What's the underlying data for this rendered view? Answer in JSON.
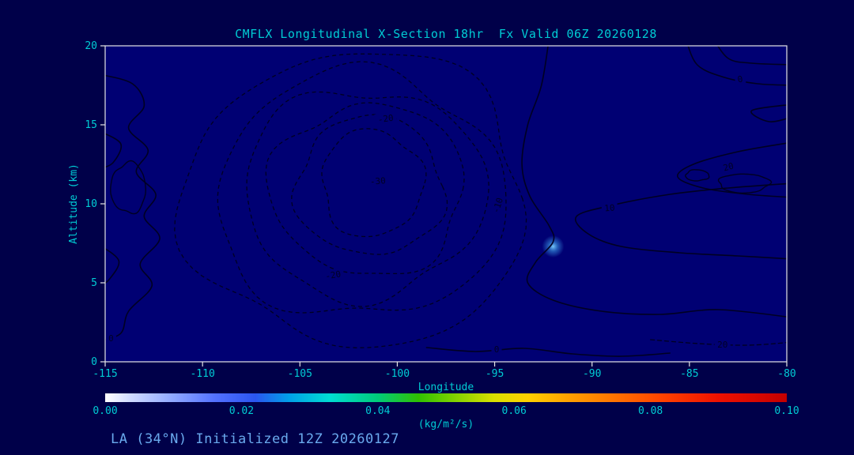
{
  "window": {
    "background": "#000049"
  },
  "chart_data": {
    "type": "contour",
    "title": "CMFLX Longitudinal X-Section 18hr  Fx Valid 06Z 20260128",
    "xlabel": "Longitude",
    "ylabel": "Altitude (km)",
    "xlim": [
      -115,
      -80
    ],
    "ylim": [
      0,
      20
    ],
    "x_ticks": [
      -115,
      -110,
      -105,
      -100,
      -95,
      -90,
      -85,
      -80
    ],
    "y_ticks": [
      0,
      5,
      10,
      15,
      20
    ],
    "grid": false,
    "plot_background": "#000073",
    "frame_color": "#e6e6e6",
    "text_color": "#00ccd4",
    "contour_color": "#000022",
    "contour_label_color": "#000026",
    "contour_levels_labeled": [
      -30,
      -20,
      -10,
      0,
      10,
      20
    ],
    "rings": [
      {
        "level": -30,
        "cx": -101.3,
        "cy": 11.3,
        "rx": 2.6,
        "ry": 3.4
      },
      {
        "level": -25,
        "cx": -101.4,
        "cy": 11.1,
        "rx": 3.8,
        "ry": 4.4
      },
      {
        "level": -20,
        "cx": -101.5,
        "cy": 10.9,
        "rx": 5.0,
        "ry": 5.4
      },
      {
        "level": -15,
        "cx": -101.7,
        "cy": 10.7,
        "rx": 6.2,
        "ry": 6.6
      },
      {
        "level": -10,
        "cx": -101.9,
        "cy": 10.5,
        "rx": 7.4,
        "ry": 7.8
      },
      {
        "level": -5,
        "cx": -102.1,
        "cy": 10.3,
        "rx": 8.8,
        "ry": 9.3
      }
    ],
    "paths": [
      {
        "level": 0,
        "dashed": false,
        "points": [
          [
            -92.2,
            20.5
          ],
          [
            -92.6,
            17.5
          ],
          [
            -93.3,
            15
          ],
          [
            -93.6,
            12.5
          ],
          [
            -93.2,
            10.5
          ],
          [
            -92.2,
            8.6
          ],
          [
            -92.0,
            7.6
          ],
          [
            -92.9,
            6.3
          ],
          [
            -93.3,
            5.0
          ],
          [
            -92.0,
            3.9
          ],
          [
            -89.5,
            3.2
          ],
          [
            -86.5,
            3.0
          ],
          [
            -83.5,
            3.3
          ],
          [
            -79.7,
            2.8
          ]
        ]
      },
      {
        "level": 10,
        "dashed": false,
        "points": [
          [
            -79.7,
            11.3
          ],
          [
            -83,
            11.0
          ],
          [
            -86,
            10.6
          ],
          [
            -89,
            9.9
          ],
          [
            -90.8,
            9.2
          ],
          [
            -90.2,
            8.1
          ],
          [
            -88.5,
            7.3
          ],
          [
            -85.5,
            6.9
          ],
          [
            -82.5,
            6.7
          ],
          [
            -79.7,
            6.5
          ]
        ]
      },
      {
        "level": 20,
        "dashed": false,
        "points": [
          [
            -79.7,
            13.9
          ],
          [
            -82.5,
            13.3
          ],
          [
            -84.8,
            12.5
          ],
          [
            -85.6,
            11.7
          ],
          [
            -84.3,
            11.0
          ],
          [
            -82,
            10.6
          ],
          [
            -79.7,
            10.4
          ]
        ]
      },
      {
        "level": 0,
        "dashed": false,
        "points": [
          [
            -85.2,
            20.5
          ],
          [
            -84.6,
            18.8
          ],
          [
            -83.2,
            18.0
          ],
          [
            -81.5,
            17.6
          ],
          [
            -79.7,
            17.5
          ]
        ]
      },
      {
        "level": 0,
        "dashed": false,
        "points": [
          [
            -83.8,
            20.5
          ],
          [
            -83.0,
            19.2
          ],
          [
            -81.8,
            18.9
          ],
          [
            -79.7,
            18.8
          ]
        ]
      },
      {
        "level": 0,
        "dashed": false,
        "points": [
          [
            -79.7,
            16.3
          ],
          [
            -81.8,
            15.9
          ],
          [
            -80.9,
            15.2
          ],
          [
            -79.7,
            15.5
          ]
        ]
      },
      {
        "level": 0,
        "dashed": false,
        "points": [
          [
            -115.3,
            18.2
          ],
          [
            -113.6,
            17.6
          ],
          [
            -113.0,
            16.2
          ],
          [
            -113.8,
            14.8
          ],
          [
            -112.8,
            13.4
          ],
          [
            -113.4,
            12.0
          ],
          [
            -112.4,
            10.6
          ],
          [
            -113.0,
            9.2
          ],
          [
            -112.2,
            7.8
          ],
          [
            -113.2,
            6.2
          ],
          [
            -112.6,
            4.8
          ],
          [
            -113.8,
            3.2
          ],
          [
            -114.2,
            1.8
          ],
          [
            -115.3,
            1.3
          ]
        ]
      },
      {
        "level": 0,
        "dashed": false,
        "points": [
          [
            -115.3,
            14.6
          ],
          [
            -114.2,
            13.8
          ],
          [
            -114.6,
            12.6
          ],
          [
            -115.3,
            12.2
          ]
        ]
      },
      {
        "level": 0,
        "dashed": false,
        "points": [
          [
            -115.3,
            7.4
          ],
          [
            -114.3,
            6.4
          ],
          [
            -114.8,
            5.2
          ],
          [
            -115.3,
            4.8
          ]
        ]
      },
      {
        "level": 0,
        "dashed": false,
        "points": [
          [
            -98.5,
            0.9
          ],
          [
            -96,
            0.65
          ],
          [
            -93.5,
            0.85
          ],
          [
            -91,
            0.5
          ],
          [
            -88.5,
            0.35
          ],
          [
            -86,
            0.55
          ]
        ]
      },
      {
        "level": 20,
        "dashed": true,
        "points": [
          [
            -87,
            1.4
          ],
          [
            -84.5,
            1.15
          ],
          [
            -82,
            1.05
          ],
          [
            -79.7,
            1.25
          ]
        ]
      }
    ],
    "ellipses": [
      {
        "cx": -82.2,
        "cy": 11.3,
        "rx": 1.3,
        "ry": 0.6,
        "dashed": false
      },
      {
        "cx": -84.6,
        "cy": 11.8,
        "rx": 0.6,
        "ry": 0.35,
        "dashed": false
      },
      {
        "cx": -113.8,
        "cy": 11.0,
        "rx": 0.9,
        "ry": 1.6,
        "dashed": false
      }
    ],
    "labels": [
      {
        "text": "-20",
        "lon": -100.6,
        "alt": 15.4,
        "rot": -8
      },
      {
        "text": "-30",
        "lon": -101.0,
        "alt": 11.45,
        "rot": -5
      },
      {
        "text": "-20",
        "lon": -103.3,
        "alt": 5.5,
        "rot": -10
      },
      {
        "text": "-10",
        "lon": -94.85,
        "alt": 9.9,
        "rot": -72
      },
      {
        "text": "10",
        "lon": -89.1,
        "alt": 9.75,
        "rot": -5
      },
      {
        "text": "20",
        "lon": -83.0,
        "alt": 12.35,
        "rot": -15
      },
      {
        "text": "0",
        "lon": -82.4,
        "alt": 17.9,
        "rot": -10
      },
      {
        "text": "0",
        "lon": -114.7,
        "alt": 1.5,
        "rot": 0
      },
      {
        "text": "0",
        "lon": -94.9,
        "alt": 0.8,
        "rot": 0
      },
      {
        "text": "20",
        "lon": -83.3,
        "alt": 1.1,
        "rot": 0
      }
    ],
    "shading_spot": {
      "lon": -92.0,
      "alt": 7.3,
      "radius_px": 14,
      "color": "#7fd2ff"
    },
    "colorbar": {
      "min": 0.0,
      "max": 0.1,
      "tick_labels": [
        "0.00",
        "0.02",
        "0.04",
        "0.06",
        "0.08",
        "0.10"
      ],
      "units_label": "(kg/m²/s)",
      "stops": [
        {
          "pos": 0.0,
          "color": "#ffffff"
        },
        {
          "pos": 0.04,
          "color": "#cdd9ff"
        },
        {
          "pos": 0.1,
          "color": "#8fa8ff"
        },
        {
          "pos": 0.16,
          "color": "#5472ff"
        },
        {
          "pos": 0.22,
          "color": "#2b55f0"
        },
        {
          "pos": 0.27,
          "color": "#00a0e8"
        },
        {
          "pos": 0.33,
          "color": "#00dcd2"
        },
        {
          "pos": 0.4,
          "color": "#00cc7a"
        },
        {
          "pos": 0.46,
          "color": "#30c000"
        },
        {
          "pos": 0.52,
          "color": "#8cd400"
        },
        {
          "pos": 0.57,
          "color": "#d8e000"
        },
        {
          "pos": 0.62,
          "color": "#ffd000"
        },
        {
          "pos": 0.68,
          "color": "#ffa000"
        },
        {
          "pos": 0.75,
          "color": "#ff7000"
        },
        {
          "pos": 0.82,
          "color": "#ff4000"
        },
        {
          "pos": 0.9,
          "color": "#ee1000"
        },
        {
          "pos": 1.0,
          "color": "#c40000"
        }
      ]
    },
    "annotation": {
      "text": "LA (34°N) Initialized 12Z 20260127",
      "color": "#6aaaee"
    }
  }
}
